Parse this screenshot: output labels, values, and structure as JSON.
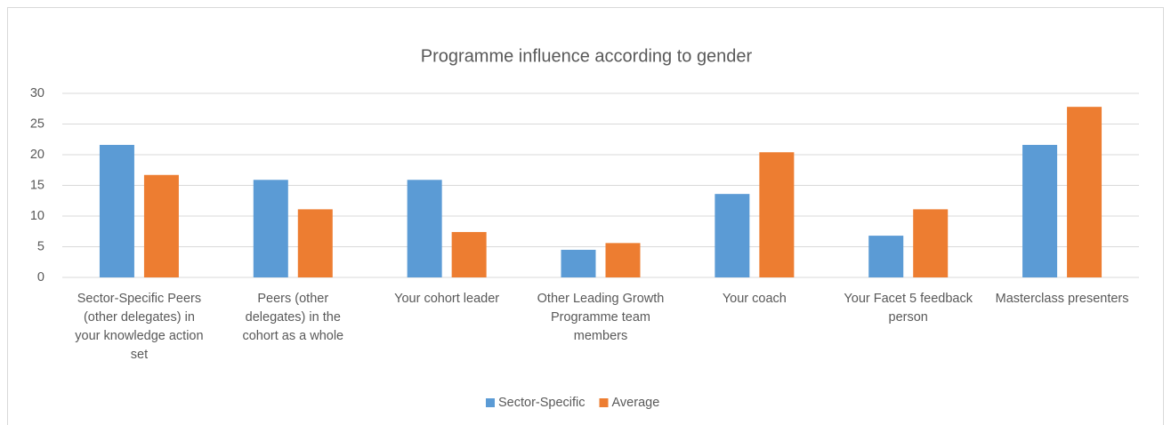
{
  "chart_data": {
    "type": "bar",
    "title": "Programme influence according to gender",
    "categories": [
      "Sector-Specific Peers (other delegates) in your knowledge action set",
      "Peers (other delegates) in the cohort as a whole",
      "Your cohort leader",
      "Other Leading Growth Programme team members",
      "Your coach",
      "Your Facet 5 feedback person",
      "Masterclass presenters"
    ],
    "series": [
      {
        "name": "Sector-Specific",
        "color": "#5b9bd5",
        "values": [
          21.6,
          15.9,
          15.9,
          4.5,
          13.6,
          6.8,
          21.6
        ]
      },
      {
        "name": "Average",
        "color": "#ed7d31",
        "values": [
          16.7,
          11.1,
          7.4,
          5.6,
          20.4,
          11.1,
          27.8
        ]
      }
    ],
    "ylim": [
      0,
      30
    ],
    "yticks": [
      0,
      5,
      10,
      15,
      20,
      25,
      30
    ],
    "grid": true,
    "legend": "bottom"
  }
}
